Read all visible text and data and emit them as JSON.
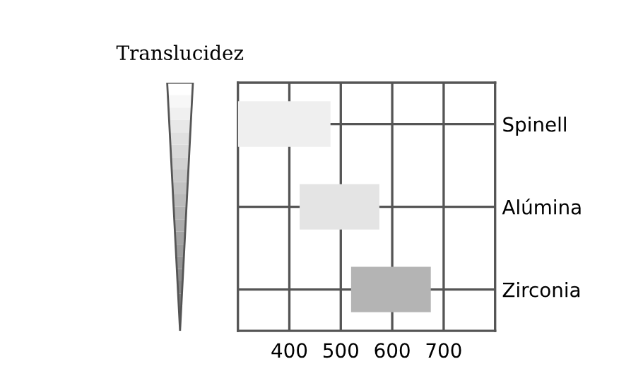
{
  "chart_data": {
    "type": "bar",
    "orientation": "horizontal",
    "ylabel": "Translucidez",
    "categories": [
      "Spinell",
      "Alúmina",
      "Zirconia"
    ],
    "base": [
      300,
      420,
      520
    ],
    "values": [
      180,
      155,
      155
    ],
    "colors": [
      "#efefef",
      "#e4e4e4",
      "#b4b4b4"
    ],
    "xlim": [
      300,
      800
    ],
    "xticks": [
      400,
      500,
      600,
      700
    ],
    "grid": true
  }
}
